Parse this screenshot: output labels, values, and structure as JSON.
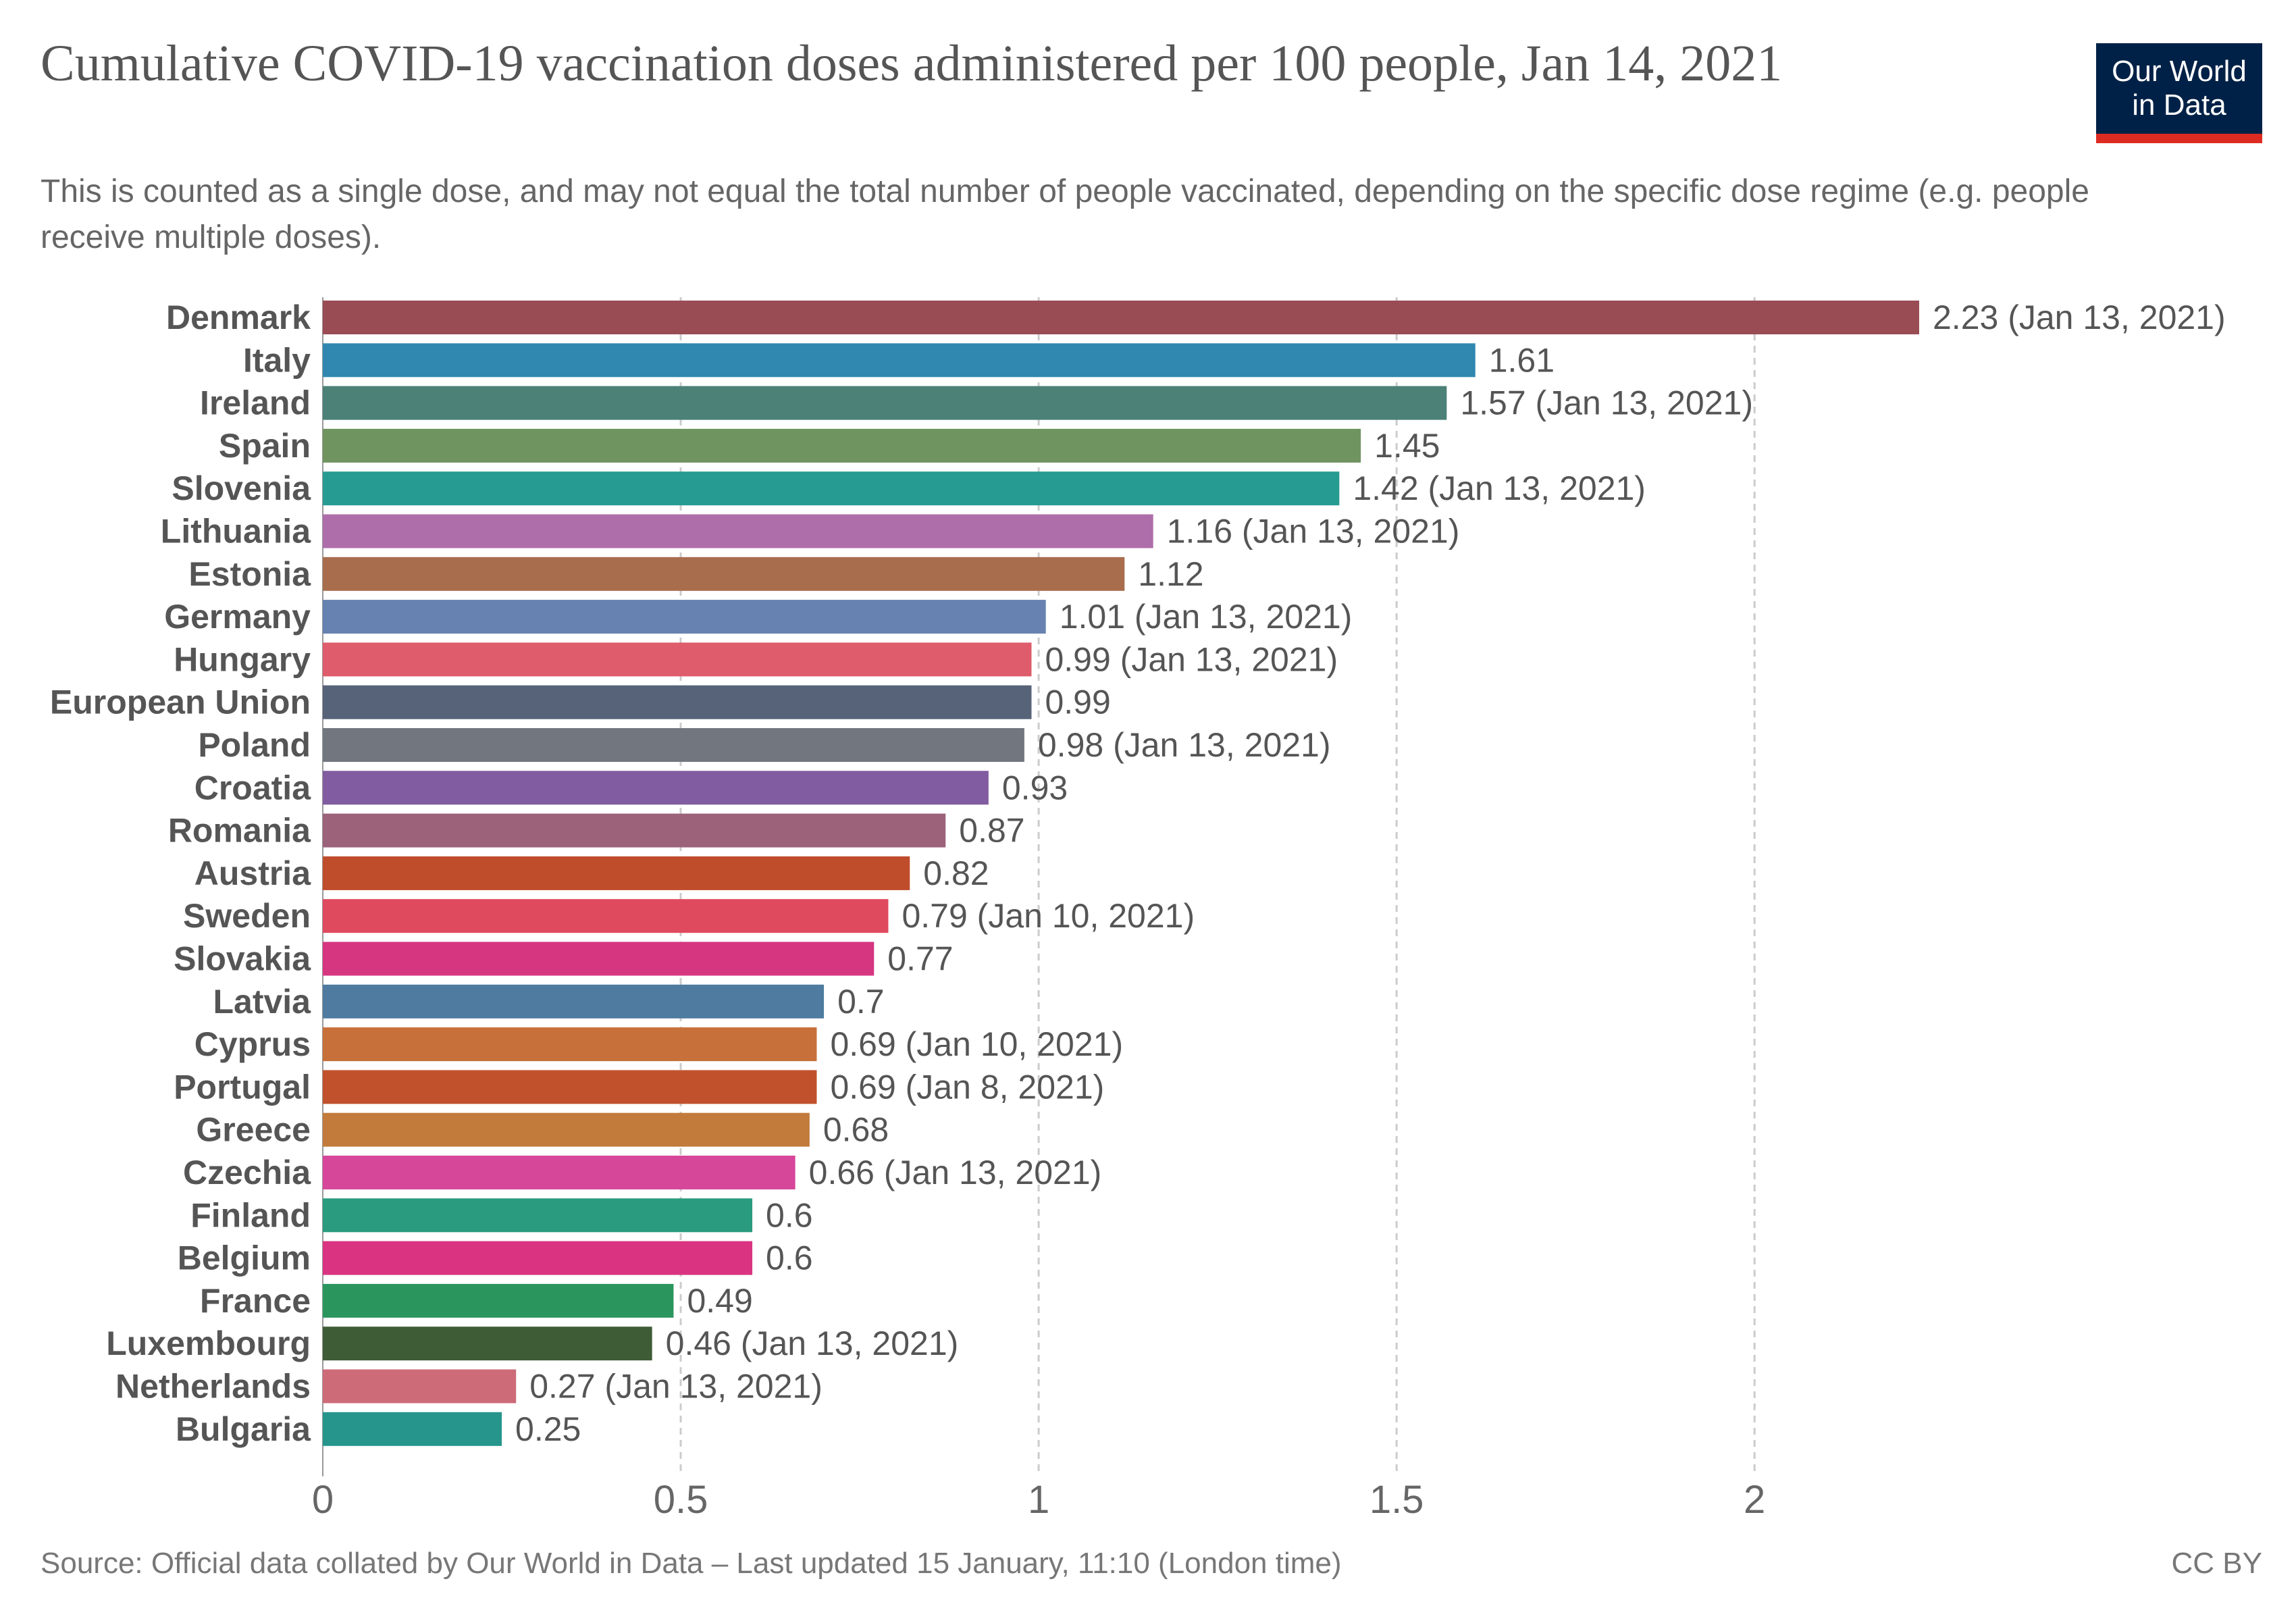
{
  "header": {
    "title": "Cumulative COVID-19 vaccination doses administered per 100 people, Jan 14, 2021",
    "subtitle": "This is counted as a single dose, and may not equal the total number of people vaccinated, depending on the specific dose regime (e.g. people receive multiple doses).",
    "logo_line1": "Our World",
    "logo_line2": "in Data"
  },
  "footer": {
    "source": "Source: Official data collated by Our World in Data – Last updated 15 January, 11:10 (London time)",
    "license": "CC BY"
  },
  "chart_data": {
    "type": "bar",
    "orientation": "horizontal",
    "title": "Cumulative COVID-19 vaccination doses administered per 100 people, Jan 14, 2021",
    "xlim": [
      0,
      2.23
    ],
    "x_ticks": [
      "0",
      "0.5",
      "1",
      "1.5",
      "2"
    ],
    "grid": "vertical dashed",
    "categories": [
      "Denmark",
      "Italy",
      "Ireland",
      "Spain",
      "Slovenia",
      "Lithuania",
      "Estonia",
      "Germany",
      "Hungary",
      "European Union",
      "Poland",
      "Croatia",
      "Romania",
      "Austria",
      "Sweden",
      "Slovakia",
      "Latvia",
      "Cyprus",
      "Portugal",
      "Greece",
      "Czechia",
      "Finland",
      "Belgium",
      "France",
      "Luxembourg",
      "Netherlands",
      "Bulgaria"
    ],
    "values": [
      2.23,
      1.61,
      1.57,
      1.45,
      1.42,
      1.16,
      1.12,
      1.01,
      0.99,
      0.99,
      0.98,
      0.93,
      0.87,
      0.82,
      0.79,
      0.77,
      0.7,
      0.69,
      0.69,
      0.68,
      0.66,
      0.6,
      0.6,
      0.49,
      0.46,
      0.27,
      0.25
    ],
    "value_labels": [
      "2.23 (Jan 13, 2021)",
      "1.61",
      "1.57 (Jan 13, 2021)",
      "1.45",
      "1.42 (Jan 13, 2021)",
      "1.16 (Jan 13, 2021)",
      "1.12",
      "1.01 (Jan 13, 2021)",
      "0.99 (Jan 13, 2021)",
      "0.99",
      "0.98 (Jan 13, 2021)",
      "0.93",
      "0.87",
      "0.82",
      "0.79 (Jan 10, 2021)",
      "0.77",
      "0.7",
      "0.69 (Jan 10, 2021)",
      "0.69 (Jan 8, 2021)",
      "0.68",
      "0.66 (Jan 13, 2021)",
      "0.6",
      "0.6",
      "0.49",
      "0.46 (Jan 13, 2021)",
      "0.27 (Jan 13, 2021)",
      "0.25"
    ],
    "colors": [
      "#9a4c55",
      "#3088b0",
      "#4b8176",
      "#70945f",
      "#269b92",
      "#ae6eaa",
      "#a76d4d",
      "#6782b0",
      "#de5c6b",
      "#566378",
      "#72767e",
      "#825ca0",
      "#9c627a",
      "#bf4d2c",
      "#df4a5e",
      "#d63680",
      "#4e7b9f",
      "#c87039",
      "#c1512c",
      "#c27b3b",
      "#d6479a",
      "#2a9b7e",
      "#d93381",
      "#2a965e",
      "#3e5c36",
      "#cd6b79",
      "#26958c"
    ]
  }
}
